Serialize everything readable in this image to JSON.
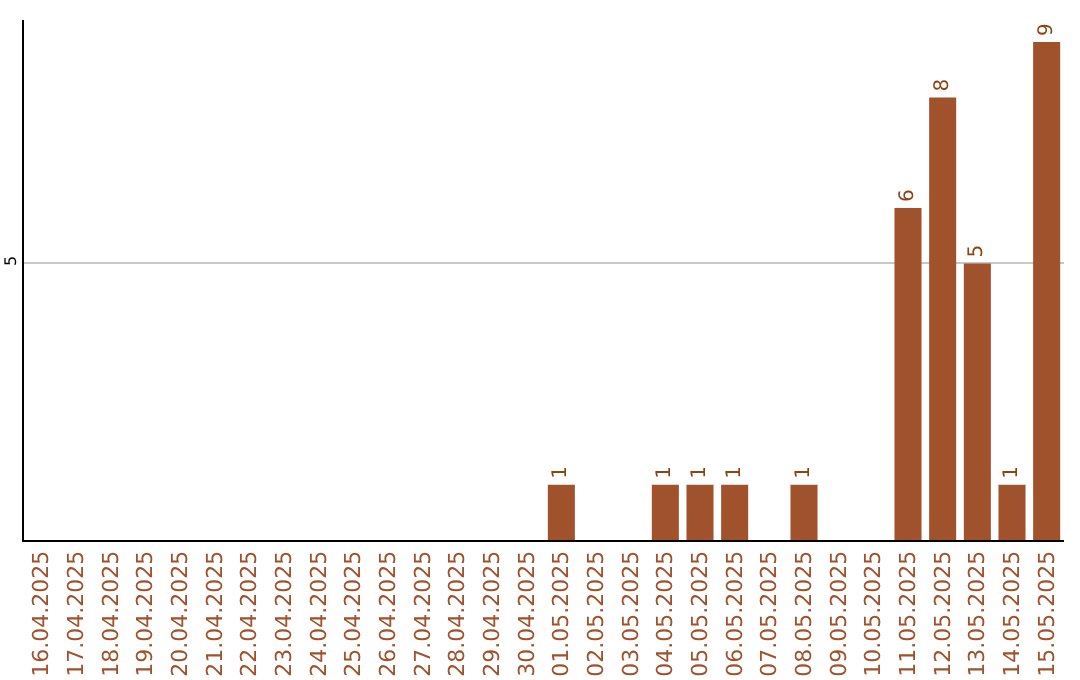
{
  "chart_data": {
    "type": "bar",
    "categories": [
      "16.04.2025",
      "17.04.2025",
      "18.04.2025",
      "19.04.2025",
      "20.04.2025",
      "21.04.2025",
      "22.04.2025",
      "23.04.2025",
      "24.04.2025",
      "25.04.2025",
      "26.04.2025",
      "27.04.2025",
      "28.04.2025",
      "29.04.2025",
      "30.04.2025",
      "01.05.2025",
      "02.05.2025",
      "03.05.2025",
      "04.05.2025",
      "05.05.2025",
      "06.05.2025",
      "07.05.2025",
      "08.05.2025",
      "09.05.2025",
      "10.05.2025",
      "11.05.2025",
      "12.05.2025",
      "13.05.2025",
      "14.05.2025",
      "15.05.2025"
    ],
    "values": [
      null,
      null,
      null,
      null,
      null,
      null,
      null,
      null,
      null,
      null,
      null,
      null,
      null,
      null,
      null,
      1,
      null,
      null,
      1,
      1,
      1,
      null,
      1,
      null,
      null,
      6,
      8,
      5,
      1,
      9
    ],
    "color": "#a0522d",
    "ylim": [
      0,
      9.4
    ],
    "yticks": [
      5
    ],
    "grid": "y",
    "data_labels": true,
    "legend": false
  }
}
